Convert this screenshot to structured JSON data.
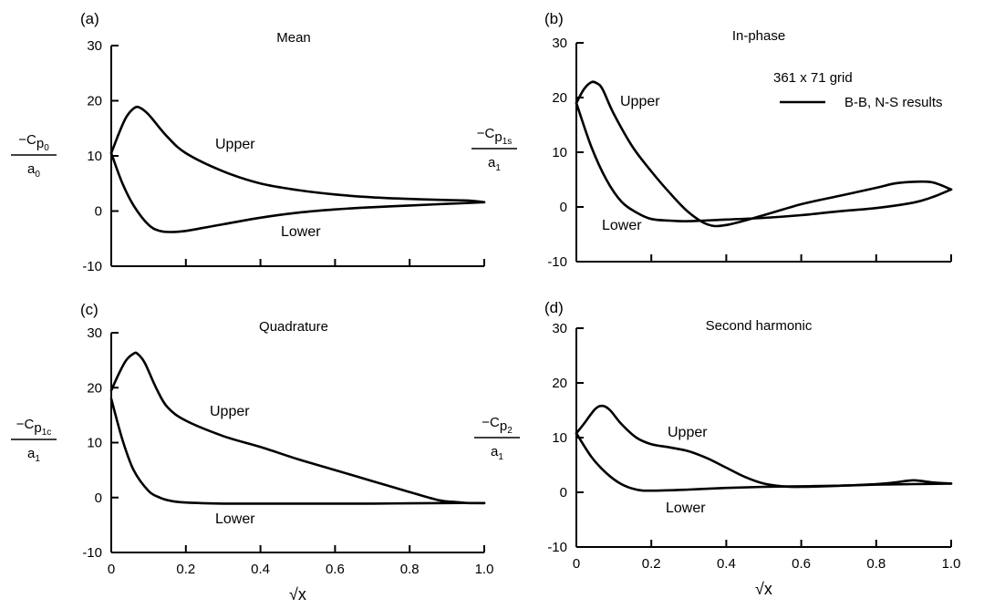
{
  "chart_data": [
    {
      "type": "line",
      "id": "a",
      "panel_label": "(a)",
      "title": "Mean",
      "ylabel": "−Cp0 / a0",
      "ylabel_parts": {
        "main": "−C",
        "p": "p",
        "sub": "0",
        "denom": "a",
        "denom_sub": "0"
      },
      "xlim": [
        0,
        1.0
      ],
      "ylim": [
        -10,
        30
      ],
      "yticks": [
        "30",
        "20",
        "10",
        "0",
        "-10"
      ],
      "xtick_labels": [],
      "grid": false,
      "annotations": [
        "Upper",
        "Lower"
      ],
      "series": [
        {
          "name": "Upper",
          "x": [
            0,
            0.02,
            0.04,
            0.06,
            0.075,
            0.1,
            0.15,
            0.2,
            0.3,
            0.4,
            0.5,
            0.6,
            0.7,
            0.8,
            0.9,
            0.96,
            1.0
          ],
          "y": [
            10.5,
            14,
            17,
            18.6,
            18.8,
            17.5,
            13.5,
            10.5,
            7.2,
            5,
            3.8,
            3,
            2.5,
            2.2,
            2,
            1.9,
            1.6
          ]
        },
        {
          "name": "Lower",
          "x": [
            0,
            0.03,
            0.06,
            0.1,
            0.13,
            0.16,
            0.2,
            0.25,
            0.3,
            0.4,
            0.5,
            0.6,
            0.7,
            0.8,
            0.9,
            1.0
          ],
          "y": [
            10.5,
            5,
            1,
            -2.5,
            -3.6,
            -3.8,
            -3.6,
            -3,
            -2.4,
            -1.2,
            -0.3,
            0.3,
            0.7,
            1,
            1.3,
            1.6
          ]
        }
      ]
    },
    {
      "type": "line",
      "id": "b",
      "panel_label": "(b)",
      "title": "In-phase",
      "ylabel": "−Cp1s / a1",
      "ylabel_parts": {
        "main": "−C",
        "p": "p",
        "sub": "1s",
        "denom": "a",
        "denom_sub": "1"
      },
      "xlim": [
        0,
        1.0
      ],
      "ylim": [
        -10,
        30
      ],
      "yticks": [
        "30",
        "20",
        "10",
        "0",
        "-10"
      ],
      "xtick_labels": [],
      "grid": false,
      "annotations": [
        "Upper",
        "Lower"
      ],
      "legend": {
        "title": "361 x 71 grid",
        "entries": [
          "B-B, N-S results"
        ],
        "position": "top-right"
      },
      "series": [
        {
          "name": "Upper",
          "x": [
            0,
            0.02,
            0.04,
            0.055,
            0.07,
            0.1,
            0.15,
            0.2,
            0.25,
            0.3,
            0.35,
            0.4,
            0.5,
            0.6,
            0.7,
            0.8,
            0.85,
            0.9,
            0.95,
            1.0
          ],
          "y": [
            19,
            21.5,
            22.8,
            22.6,
            21.5,
            17,
            11,
            6.5,
            2.5,
            -1,
            -3.2,
            -3.3,
            -1.5,
            0.5,
            2,
            3.5,
            4.3,
            4.6,
            4.5,
            3.2
          ]
        },
        {
          "name": "Lower",
          "x": [
            0,
            0.04,
            0.08,
            0.12,
            0.16,
            0.2,
            0.25,
            0.3,
            0.4,
            0.5,
            0.6,
            0.7,
            0.8,
            0.9,
            0.95,
            1.0
          ],
          "y": [
            19,
            11,
            5,
            1,
            -1,
            -2.2,
            -2.5,
            -2.6,
            -2.3,
            -2,
            -1.5,
            -0.8,
            -0.2,
            0.8,
            1.8,
            3.2
          ]
        }
      ]
    },
    {
      "type": "line",
      "id": "c",
      "panel_label": "(c)",
      "title": "Quadrature",
      "ylabel": "−Cp1c / a1",
      "ylabel_parts": {
        "main": "−C",
        "p": "p",
        "sub": "1c",
        "denom": "a",
        "denom_sub": "1"
      },
      "xlim": [
        0,
        1.0
      ],
      "ylim": [
        -10,
        30
      ],
      "yticks": [
        "30",
        "20",
        "10",
        "0",
        "-10"
      ],
      "xtick_labels": [
        "0",
        "0.2",
        "0.4",
        "0.6",
        "0.8",
        "1.0"
      ],
      "xlabel": "√x",
      "grid": false,
      "annotations": [
        "Upper",
        "Lower"
      ],
      "series": [
        {
          "name": "Upper",
          "x": [
            0,
            0.02,
            0.04,
            0.06,
            0.07,
            0.09,
            0.12,
            0.15,
            0.2,
            0.3,
            0.4,
            0.5,
            0.6,
            0.7,
            0.8,
            0.88,
            0.92,
            0.96,
            1.0
          ],
          "y": [
            19.5,
            22.5,
            25,
            26.2,
            26.2,
            24.5,
            20,
            16.5,
            14,
            11.2,
            9.2,
            7,
            5,
            3,
            1,
            -0.5,
            -0.8,
            -1,
            -1
          ]
        },
        {
          "name": "Lower",
          "x": [
            0,
            0.03,
            0.06,
            0.1,
            0.13,
            0.16,
            0.2,
            0.3,
            0.4,
            0.5,
            0.6,
            0.7,
            0.8,
            0.9,
            1.0
          ],
          "y": [
            18,
            10.5,
            5,
            1.2,
            0,
            -0.6,
            -0.9,
            -1.1,
            -1.1,
            -1.1,
            -1.1,
            -1.1,
            -1.05,
            -1,
            -1
          ]
        }
      ]
    },
    {
      "type": "line",
      "id": "d",
      "panel_label": "(d)",
      "title": "Second harmonic",
      "ylabel": "−Cp2 / a1",
      "ylabel_parts": {
        "main": "−C",
        "p": "p",
        "sub": "2",
        "denom": "a",
        "denom_sub": "1"
      },
      "xlim": [
        0,
        1.0
      ],
      "ylim": [
        -10,
        30
      ],
      "yticks": [
        "30",
        "20",
        "10",
        "0",
        "-10"
      ],
      "xtick_labels": [
        "0",
        "0.2",
        "0.4",
        "0.6",
        "0.8",
        "1.0"
      ],
      "xlabel": "√x",
      "grid": false,
      "annotations": [
        "Upper",
        "Lower"
      ],
      "series": [
        {
          "name": "Upper",
          "x": [
            0,
            0.02,
            0.05,
            0.07,
            0.09,
            0.12,
            0.16,
            0.2,
            0.25,
            0.3,
            0.35,
            0.4,
            0.45,
            0.5,
            0.55,
            0.6,
            0.7,
            0.8,
            0.85,
            0.9,
            0.95,
            1.0
          ],
          "y": [
            10.8,
            12.5,
            15.2,
            15.8,
            15,
            12.5,
            10,
            8.8,
            8.2,
            7.5,
            6.2,
            4.5,
            2.8,
            1.6,
            1.1,
            1,
            1.2,
            1.5,
            1.8,
            2.2,
            1.8,
            1.6
          ]
        },
        {
          "name": "Lower",
          "x": [
            0,
            0.04,
            0.08,
            0.12,
            0.16,
            0.2,
            0.3,
            0.4,
            0.5,
            0.6,
            0.7,
            0.8,
            0.9,
            1.0
          ],
          "y": [
            10.8,
            6.5,
            3.5,
            1.5,
            0.5,
            0.3,
            0.5,
            0.8,
            1,
            1.1,
            1.2,
            1.4,
            1.5,
            1.6
          ]
        }
      ]
    }
  ]
}
